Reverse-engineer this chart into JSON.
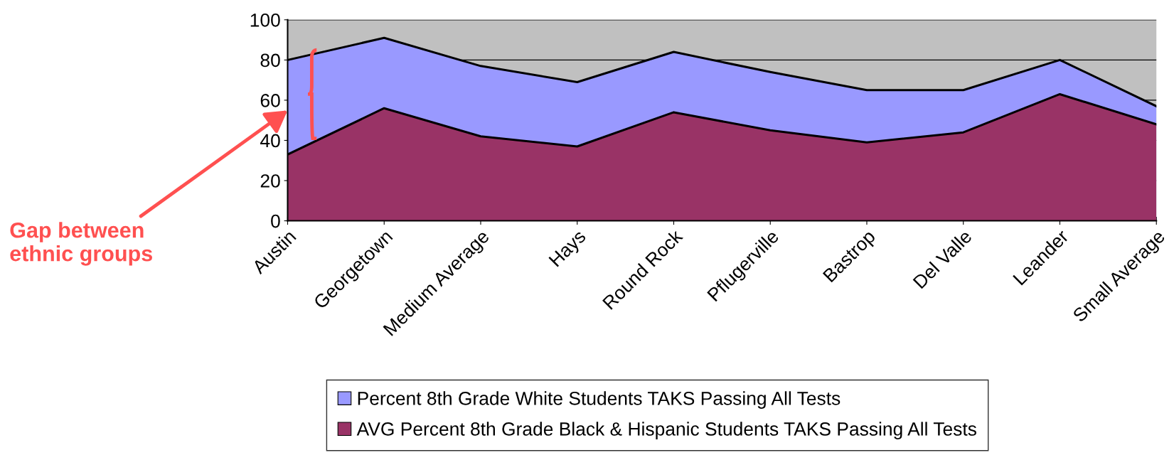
{
  "chart_data": {
    "type": "area",
    "categories": [
      "Austin",
      "Georgetown",
      "Medium Average",
      "Hays",
      "Round Rock",
      "Pflugerville",
      "Bastrop",
      "Del Valle",
      "Leander",
      "Small Average"
    ],
    "series": [
      {
        "name": "Percent 8th Grade White Students TAKS Passing All Tests",
        "color": "#9999ff",
        "values": [
          80,
          91,
          77,
          69,
          84,
          74,
          65,
          65,
          80,
          57
        ]
      },
      {
        "name": "AVG Percent 8th Grade Black & Hispanic Students TAKS Passing All Tests",
        "color": "#993366",
        "values": [
          33,
          56,
          42,
          37,
          54,
          45,
          39,
          44,
          63,
          48
        ]
      }
    ],
    "ylim": [
      0,
      100
    ],
    "yticks": [
      0,
      20,
      40,
      60,
      80,
      100
    ],
    "grid": "y",
    "legend": "bottom",
    "annotations": [
      "Gap between\nethnic groups"
    ]
  }
}
